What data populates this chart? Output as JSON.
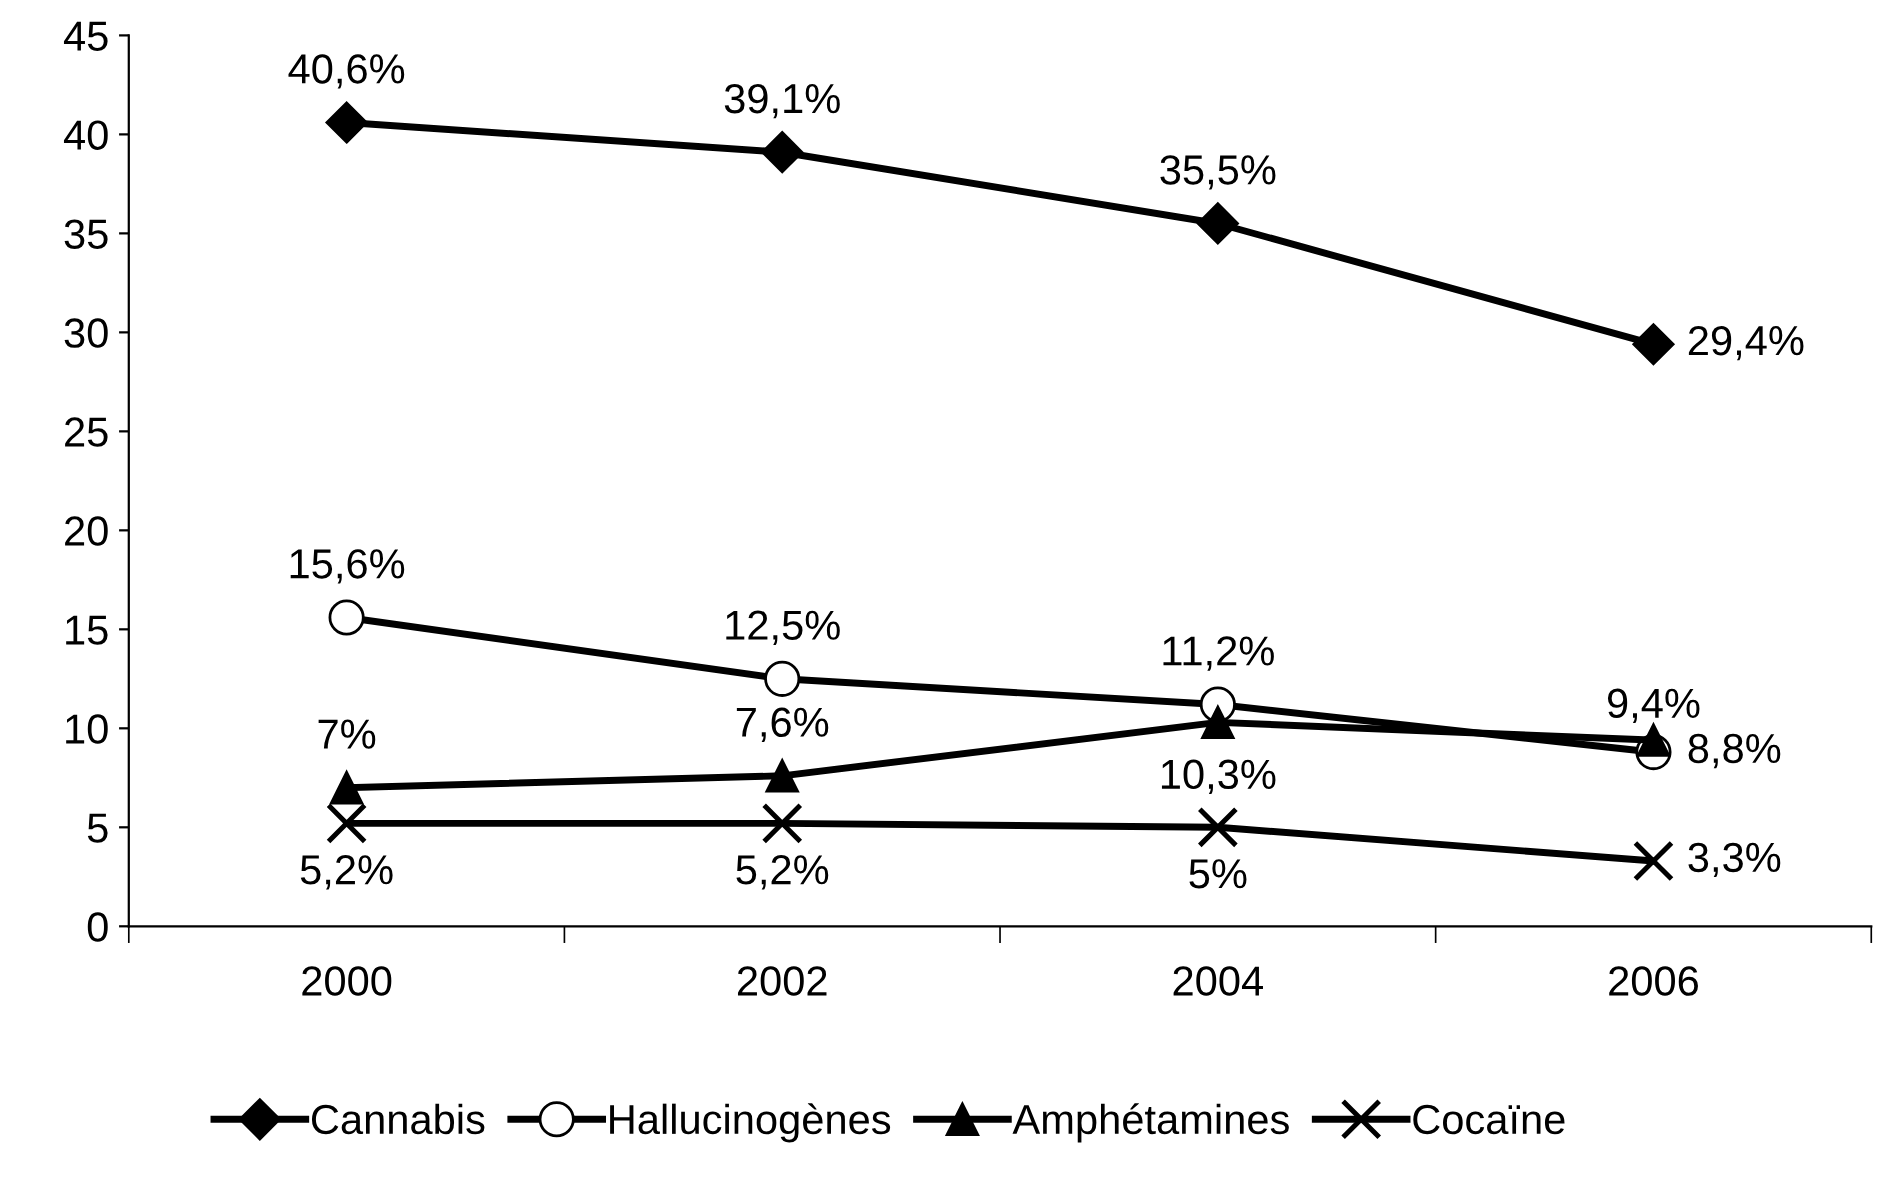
{
  "chart_data": {
    "type": "line",
    "categories": [
      "2000",
      "2002",
      "2004",
      "2006"
    ],
    "ylim": [
      0,
      45
    ],
    "yticks": [
      0,
      5,
      10,
      15,
      20,
      25,
      30,
      35,
      40,
      45
    ],
    "grid": false,
    "legend": "bottom",
    "series": [
      {
        "name": "Cannabis",
        "color": "#000000",
        "marker": "diamond",
        "values": [
          40.6,
          39.1,
          35.5,
          29.4
        ],
        "value_labels": [
          "40,6%",
          "39,1%",
          "35,5%",
          "29,4%"
        ]
      },
      {
        "name": "Hallucinogènes",
        "color": "#000000",
        "marker": "circle",
        "values": [
          15.6,
          12.5,
          11.2,
          8.8
        ],
        "value_labels": [
          "15,6%",
          "12,5%",
          "11,2%",
          "8,8%"
        ]
      },
      {
        "name": "Amphétamines",
        "color": "#000000",
        "marker": "triangle",
        "values": [
          7,
          7.6,
          10.3,
          9.4
        ],
        "value_labels": [
          "7%",
          "7,6%",
          "10,3%",
          "9,4%"
        ]
      },
      {
        "name": "Cocaïne",
        "color": "#000000",
        "marker": "cross",
        "values": [
          5.2,
          5.2,
          5,
          3.3
        ],
        "value_labels": [
          "5,2%",
          "5,2%",
          "5%",
          "3,3%"
        ]
      }
    ]
  }
}
